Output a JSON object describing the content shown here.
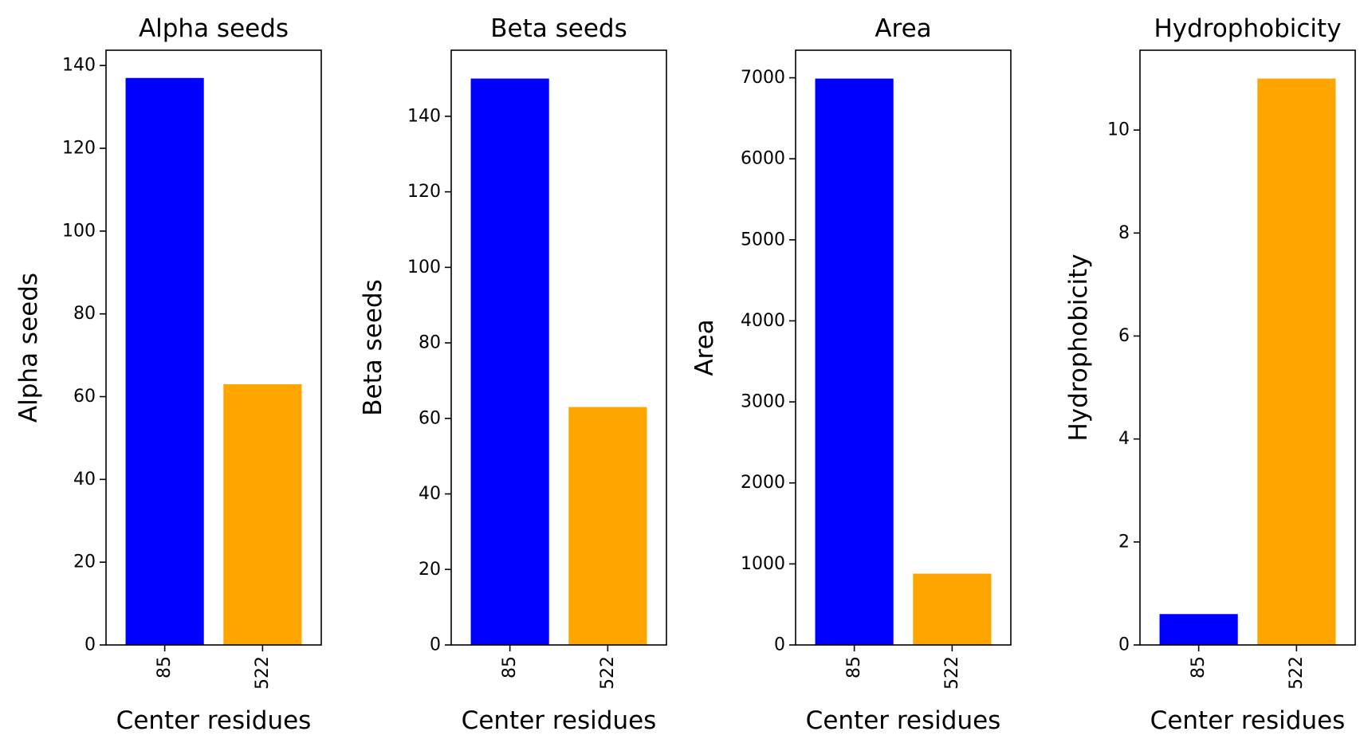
{
  "chart_data": [
    {
      "type": "bar",
      "title": "Alpha seeds",
      "xlabel": "Center residues",
      "ylabel": "Alpha seeds",
      "categories": [
        "85",
        "522"
      ],
      "values": [
        137,
        63
      ],
      "ylim": [
        0,
        143.7
      ],
      "yticks": [
        0,
        20,
        40,
        60,
        80,
        100,
        120,
        140
      ],
      "colors": [
        "#0000ff",
        "#ffa500"
      ],
      "grid": false
    },
    {
      "type": "bar",
      "title": "Beta seeds",
      "xlabel": "Center residues",
      "ylabel": "Beta seeds",
      "categories": [
        "85",
        "522"
      ],
      "values": [
        150,
        63
      ],
      "ylim": [
        0,
        157.5
      ],
      "yticks": [
        0,
        20,
        40,
        60,
        80,
        100,
        120,
        140
      ],
      "colors": [
        "#0000ff",
        "#ffa500"
      ],
      "grid": false
    },
    {
      "type": "bar",
      "title": "Area",
      "xlabel": "Center residues",
      "ylabel": "Area",
      "categories": [
        "85",
        "522"
      ],
      "values": [
        6990,
        880
      ],
      "ylim": [
        0,
        7340
      ],
      "yticks": [
        0,
        1000,
        2000,
        3000,
        4000,
        5000,
        6000,
        7000
      ],
      "colors": [
        "#0000ff",
        "#ffa500"
      ],
      "grid": false
    },
    {
      "type": "bar",
      "title": "Hydrophobicity",
      "xlabel": "Center residues",
      "ylabel": "Hydrophobicity",
      "categories": [
        "85",
        "522"
      ],
      "values": [
        0.6,
        11.0
      ],
      "ylim": [
        0,
        11.55
      ],
      "yticks": [
        0,
        2,
        4,
        6,
        8,
        10
      ],
      "colors": [
        "#0000ff",
        "#ffa500"
      ],
      "grid": false
    }
  ]
}
